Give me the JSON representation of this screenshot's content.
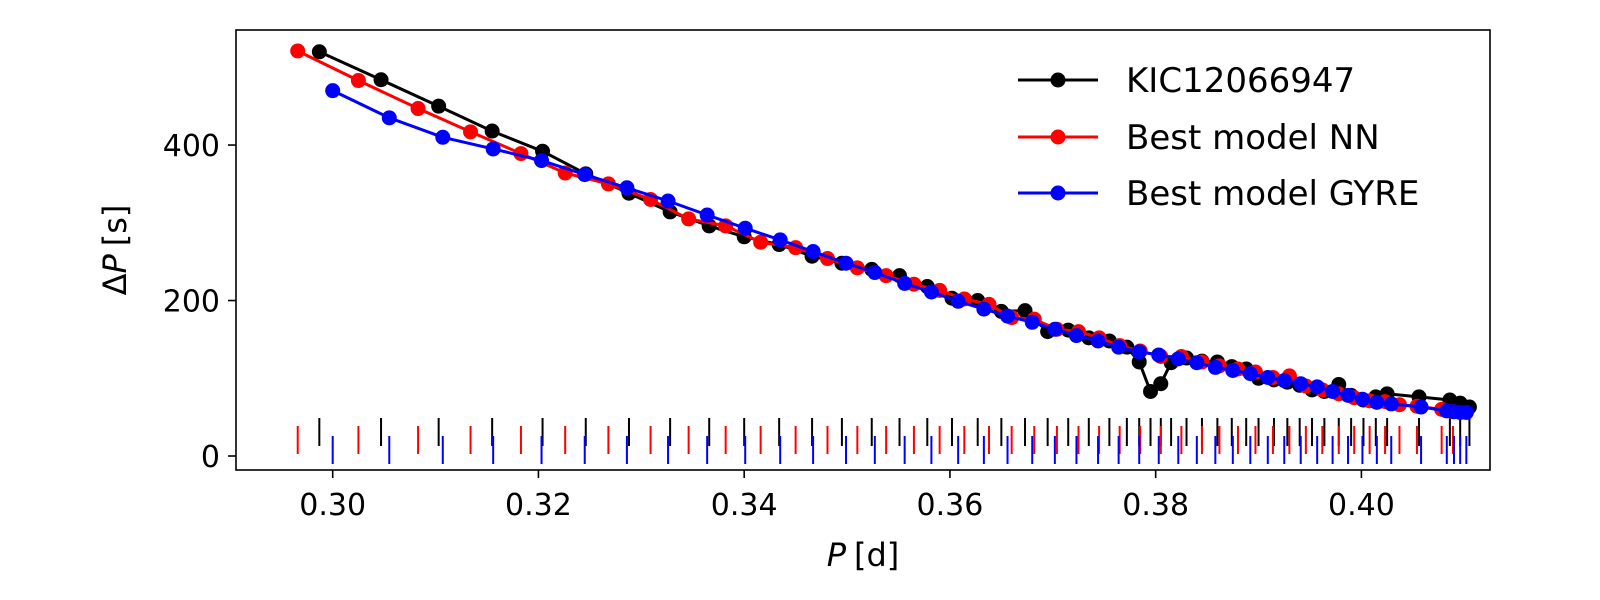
{
  "chart_data": {
    "type": "line",
    "title": "",
    "xlabel_var": "P",
    "xlabel_unit": "[d]",
    "ylabel_prefix": "Δ",
    "ylabel_var": "P",
    "ylabel_unit": "[s]",
    "xlim": [
      0.2906,
      0.4125
    ],
    "ylim": [
      -18,
      548
    ],
    "xticks": [
      0.3,
      0.32,
      0.34,
      0.36,
      0.38,
      0.4
    ],
    "xtick_labels": [
      "0.30",
      "0.32",
      "0.34",
      "0.36",
      "0.38",
      "0.40"
    ],
    "yticks": [
      0,
      200,
      400
    ],
    "ytick_labels": [
      "0",
      "200",
      "400"
    ],
    "legend_position": "top-right",
    "series": [
      {
        "name": "KIC12066947",
        "color": "#000000",
        "rug_level": "top",
        "points": [
          [
            0.2987,
            520
          ],
          [
            0.3047,
            484
          ],
          [
            0.3103,
            450
          ],
          [
            0.3155,
            418
          ],
          [
            0.3204,
            392
          ],
          [
            0.3246,
            363
          ],
          [
            0.3288,
            338
          ],
          [
            0.3328,
            314
          ],
          [
            0.3366,
            296
          ],
          [
            0.34,
            282
          ],
          [
            0.3434,
            272
          ],
          [
            0.3466,
            257
          ],
          [
            0.3495,
            248
          ],
          [
            0.3524,
            240
          ],
          [
            0.3551,
            232
          ],
          [
            0.3578,
            218
          ],
          [
            0.3602,
            203
          ],
          [
            0.3627,
            200
          ],
          [
            0.365,
            186
          ],
          [
            0.3673,
            187
          ],
          [
            0.3695,
            160
          ],
          [
            0.3715,
            162
          ],
          [
            0.3735,
            152
          ],
          [
            0.3755,
            148
          ],
          [
            0.3772,
            140
          ],
          [
            0.3784,
            121
          ],
          [
            0.3795,
            83
          ],
          [
            0.3805,
            93
          ],
          [
            0.3815,
            120
          ],
          [
            0.383,
            126
          ],
          [
            0.3845,
            122
          ],
          [
            0.386,
            121
          ],
          [
            0.3874,
            115
          ],
          [
            0.3888,
            112
          ],
          [
            0.39,
            100
          ],
          [
            0.3915,
            98
          ],
          [
            0.3928,
            95
          ],
          [
            0.394,
            91
          ],
          [
            0.3952,
            85
          ],
          [
            0.3964,
            83
          ],
          [
            0.3978,
            92
          ],
          [
            0.399,
            78
          ],
          [
            0.4002,
            72
          ],
          [
            0.4014,
            76
          ],
          [
            0.4025,
            80
          ],
          [
            0.4056,
            76
          ],
          [
            0.4086,
            72
          ],
          [
            0.4096,
            68
          ],
          [
            0.4105,
            63
          ]
        ]
      },
      {
        "name": "Best model NN",
        "color": "#ff0000",
        "rug_level": "middle",
        "points": [
          [
            0.2966,
            521
          ],
          [
            0.3025,
            483
          ],
          [
            0.3083,
            447
          ],
          [
            0.3134,
            417
          ],
          [
            0.3183,
            389
          ],
          [
            0.3226,
            364
          ],
          [
            0.3268,
            350
          ],
          [
            0.3309,
            330
          ],
          [
            0.3346,
            305
          ],
          [
            0.3382,
            296
          ],
          [
            0.3416,
            275
          ],
          [
            0.345,
            268
          ],
          [
            0.3481,
            254
          ],
          [
            0.351,
            242
          ],
          [
            0.3538,
            232
          ],
          [
            0.3565,
            221
          ],
          [
            0.359,
            213
          ],
          [
            0.3614,
            202
          ],
          [
            0.3638,
            195
          ],
          [
            0.366,
            178
          ],
          [
            0.3682,
            176
          ],
          [
            0.3704,
            163
          ],
          [
            0.3725,
            160
          ],
          [
            0.3745,
            152
          ],
          [
            0.3765,
            142
          ],
          [
            0.3785,
            135
          ],
          [
            0.3805,
            128
          ],
          [
            0.3825,
            128
          ],
          [
            0.3845,
            121
          ],
          [
            0.3862,
            116
          ],
          [
            0.388,
            112
          ],
          [
            0.3897,
            108
          ],
          [
            0.3914,
            101
          ],
          [
            0.393,
            103
          ],
          [
            0.3946,
            90
          ],
          [
            0.3962,
            85
          ],
          [
            0.3978,
            80
          ],
          [
            0.3993,
            75
          ],
          [
            0.4008,
            71
          ],
          [
            0.4023,
            70
          ],
          [
            0.4037,
            66
          ],
          [
            0.4054,
            64
          ],
          [
            0.4078,
            60
          ],
          [
            0.4089,
            57
          ]
        ]
      },
      {
        "name": "Best model GYRE",
        "color": "#0000ff",
        "rug_level": "bottom",
        "points": [
          [
            0.3,
            470
          ],
          [
            0.3055,
            435
          ],
          [
            0.3107,
            410
          ],
          [
            0.3156,
            395
          ],
          [
            0.3203,
            380
          ],
          [
            0.3245,
            362
          ],
          [
            0.3286,
            345
          ],
          [
            0.3326,
            328
          ],
          [
            0.3364,
            310
          ],
          [
            0.3401,
            293
          ],
          [
            0.3435,
            278
          ],
          [
            0.3467,
            263
          ],
          [
            0.3499,
            248
          ],
          [
            0.3527,
            236
          ],
          [
            0.3556,
            222
          ],
          [
            0.3582,
            211
          ],
          [
            0.3608,
            199
          ],
          [
            0.3633,
            189
          ],
          [
            0.3656,
            180
          ],
          [
            0.368,
            172
          ],
          [
            0.3702,
            163
          ],
          [
            0.3723,
            155
          ],
          [
            0.3744,
            148
          ],
          [
            0.3764,
            140
          ],
          [
            0.3784,
            134
          ],
          [
            0.3803,
            130
          ],
          [
            0.3822,
            125
          ],
          [
            0.384,
            120
          ],
          [
            0.3858,
            114
          ],
          [
            0.3875,
            110
          ],
          [
            0.3892,
            106
          ],
          [
            0.3909,
            101
          ],
          [
            0.3925,
            97
          ],
          [
            0.3941,
            93
          ],
          [
            0.3957,
            89
          ],
          [
            0.3972,
            83
          ],
          [
            0.3987,
            78
          ],
          [
            0.4001,
            73
          ],
          [
            0.4015,
            69
          ],
          [
            0.4029,
            67
          ],
          [
            0.4058,
            63
          ],
          [
            0.4083,
            58
          ],
          [
            0.409,
            57
          ],
          [
            0.4096,
            56
          ],
          [
            0.4102,
            56
          ]
        ]
      }
    ]
  }
}
